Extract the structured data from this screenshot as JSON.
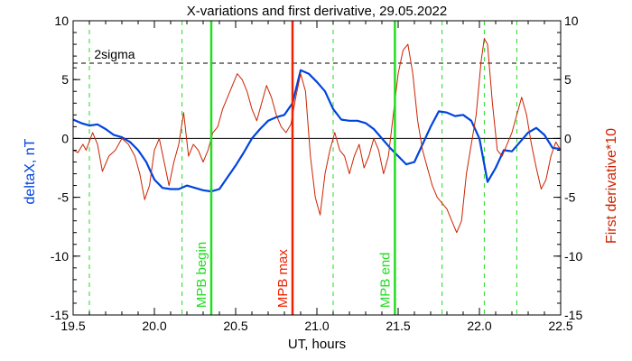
{
  "chart_data": {
    "type": "line",
    "title": "X-variations and first derivative, 29.05.2022",
    "xlabel": "UT, hours",
    "ylabel_left": "deltaX, nT",
    "ylabel_right": "First derivative*10",
    "xlim": [
      19.5,
      22.5
    ],
    "ylim_left": [
      -15,
      10
    ],
    "ylim_right": [
      -15,
      10
    ],
    "x_ticks": [
      "19.5",
      "20.0",
      "20.5",
      "21.0",
      "21.5",
      "22.0",
      "22.5"
    ],
    "y_ticks_left": [
      "-15",
      "-10",
      "-5",
      "0",
      "5",
      "10"
    ],
    "y_ticks_right": [
      "-15",
      "-10",
      "-5",
      "0",
      "5",
      "10"
    ],
    "threshold": {
      "label": "2sigma",
      "value": 6.4
    },
    "zero_line": 0,
    "dashed_green_lines": [
      19.6,
      20.17,
      21.1,
      21.77,
      22.03,
      22.23
    ],
    "markers": [
      {
        "label": "MPB begin",
        "x": 20.35,
        "color": "#22dd22"
      },
      {
        "label": "MPB max",
        "x": 20.85,
        "color": "#ee2200"
      },
      {
        "label": "MPB end",
        "x": 21.48,
        "color": "#22dd22"
      }
    ],
    "colors": {
      "deltaX": "#0044dd",
      "derivative": "#cc2200",
      "markers_green": "#22dd22",
      "marker_red": "#ee2200"
    },
    "series": [
      {
        "axis": "left",
        "color": "#0044dd",
        "x": [
          19.5,
          19.55,
          19.6,
          19.65,
          19.7,
          19.75,
          19.8,
          19.85,
          19.9,
          19.95,
          20.0,
          20.05,
          20.1,
          20.15,
          20.2,
          20.25,
          20.3,
          20.35,
          20.4,
          20.45,
          20.5,
          20.55,
          20.6,
          20.65,
          20.7,
          20.75,
          20.8,
          20.85,
          20.9,
          20.95,
          21.0,
          21.05,
          21.1,
          21.15,
          21.2,
          21.25,
          21.3,
          21.35,
          21.4,
          21.45,
          21.5,
          21.55,
          21.6,
          21.65,
          21.7,
          21.75,
          21.8,
          21.85,
          21.9,
          21.95,
          22.0,
          22.05,
          22.1,
          22.15,
          22.2,
          22.25,
          22.3,
          22.35,
          22.4,
          22.45,
          22.5
        ],
        "values": [
          1.6,
          1.3,
          1.1,
          1.2,
          0.8,
          0.3,
          0.1,
          -0.3,
          -1.0,
          -2.0,
          -3.5,
          -4.2,
          -4.3,
          -4.3,
          -4.0,
          -4.2,
          -4.4,
          -4.5,
          -4.3,
          -3.3,
          -2.3,
          -1.2,
          0.0,
          0.8,
          1.5,
          1.8,
          2.0,
          3.0,
          5.8,
          5.5,
          4.8,
          4.0,
          2.5,
          1.6,
          1.5,
          1.5,
          1.3,
          0.8,
          0.0,
          -0.8,
          -1.5,
          -2.2,
          -2.0,
          -0.5,
          1.0,
          2.3,
          2.2,
          1.9,
          2.0,
          1.5,
          0.0,
          -3.7,
          -2.5,
          -1.0,
          -1.1,
          -0.3,
          0.5,
          0.9,
          0.3,
          -0.8,
          -0.9
        ]
      },
      {
        "axis": "right",
        "color": "#cc2200",
        "x": [
          19.5,
          19.53,
          19.56,
          19.58,
          19.62,
          19.65,
          19.68,
          19.72,
          19.76,
          19.8,
          19.84,
          19.88,
          19.91,
          19.94,
          19.97,
          20.0,
          20.03,
          20.06,
          20.09,
          20.12,
          20.15,
          20.18,
          20.21,
          20.24,
          20.27,
          20.3,
          20.33,
          20.36,
          20.39,
          20.42,
          20.45,
          20.48,
          20.51,
          20.54,
          20.57,
          20.6,
          20.63,
          20.66,
          20.69,
          20.72,
          20.75,
          20.78,
          20.81,
          20.84,
          20.87,
          20.9,
          20.93,
          20.96,
          20.99,
          21.02,
          21.05,
          21.08,
          21.11,
          21.14,
          21.17,
          21.2,
          21.23,
          21.26,
          21.29,
          21.32,
          21.35,
          21.38,
          21.41,
          21.44,
          21.47,
          21.5,
          21.53,
          21.56,
          21.59,
          21.62,
          21.65,
          21.68,
          21.71,
          21.74,
          21.77,
          21.8,
          21.83,
          21.86,
          21.89,
          21.92,
          21.95,
          21.98,
          22.01,
          22.03,
          22.05,
          22.08,
          22.11,
          22.14,
          22.17,
          22.2,
          22.23,
          22.26,
          22.29,
          22.32,
          22.35,
          22.38,
          22.41,
          22.44,
          22.47,
          22.5
        ],
        "values": [
          -1.0,
          -1.2,
          -0.5,
          -1.0,
          0.5,
          -0.5,
          -2.8,
          -1.5,
          -1.0,
          0.0,
          -0.5,
          -1.5,
          -3.0,
          -5.2,
          -4.0,
          -1.0,
          0.0,
          -2.0,
          -4.0,
          -2.0,
          -0.5,
          2.2,
          -1.5,
          -0.5,
          -1.0,
          -2.0,
          -1.0,
          0.5,
          1.0,
          2.5,
          3.5,
          4.5,
          5.5,
          5.0,
          4.0,
          2.5,
          1.5,
          3.0,
          4.5,
          3.5,
          2.0,
          1.0,
          0.5,
          1.2,
          3.5,
          5.5,
          4.0,
          -1.5,
          -5.0,
          -6.5,
          -3.0,
          -1.0,
          0.5,
          -1.0,
          -1.5,
          -3.0,
          -1.5,
          -0.5,
          -2.5,
          -1.5,
          0.0,
          -1.0,
          -3.0,
          -1.5,
          2.0,
          5.5,
          7.5,
          8.0,
          5.5,
          1.5,
          -1.0,
          -2.5,
          -4.0,
          -5.0,
          -5.5,
          -6.0,
          -7.0,
          -8.0,
          -7.0,
          -3.0,
          -0.5,
          2.0,
          6.5,
          8.5,
          8.0,
          3.0,
          -1.0,
          -1.5,
          -0.5,
          0.5,
          2.0,
          3.5,
          2.0,
          -0.5,
          -2.5,
          -4.3,
          -3.5,
          -1.5,
          -0.3,
          -1.0
        ]
      }
    ]
  }
}
